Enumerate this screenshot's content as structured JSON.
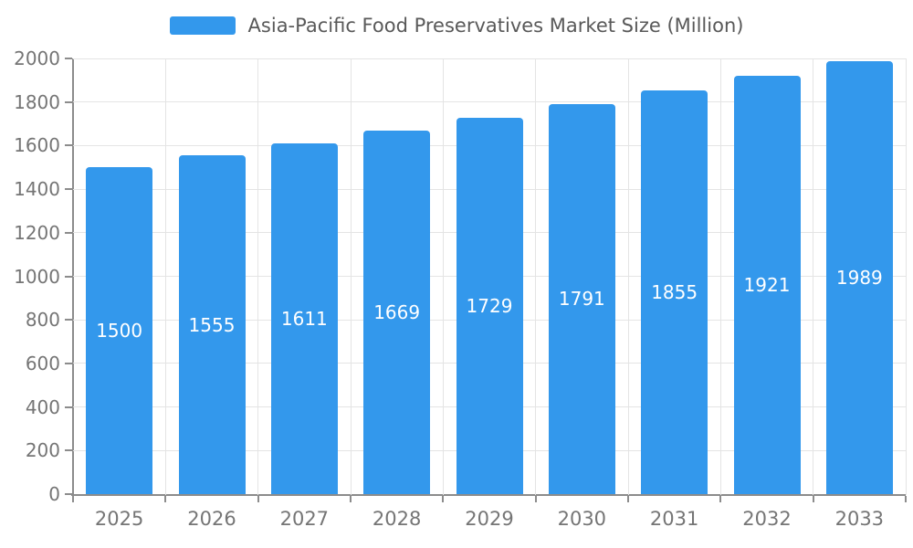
{
  "chart_data": {
    "type": "bar",
    "title": "Asia-Pacific Food Preservatives Market Size (Million)",
    "categories": [
      "2025",
      "2026",
      "2027",
      "2028",
      "2029",
      "2030",
      "2031",
      "2032",
      "2033"
    ],
    "values": [
      1500,
      1555,
      1611,
      1669,
      1729,
      1791,
      1855,
      1921,
      1989
    ],
    "series_name": "Asia-Pacific Food Preservatives Market Size (Million)",
    "xlabel": "",
    "ylabel": "",
    "ylim": [
      0,
      2000
    ],
    "yticks": [
      0,
      200,
      400,
      600,
      800,
      1000,
      1200,
      1400,
      1600,
      1800,
      2000
    ],
    "grid": true,
    "legend_position": "top",
    "bar_color": "#3398ec",
    "value_label_color": "#ffffff",
    "axis_text_color": "#757575",
    "title_color": "#595959"
  }
}
